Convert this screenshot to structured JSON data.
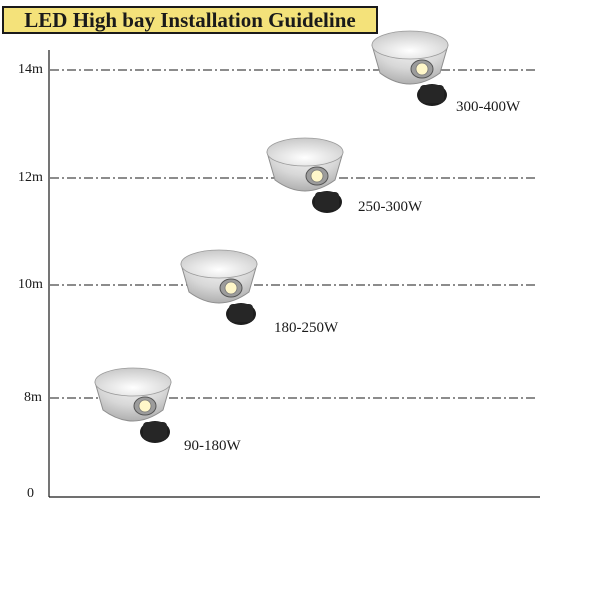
{
  "title": "LED High bay Installation Guideline",
  "axis": {
    "ticks": [
      {
        "label": "14m",
        "height_m": 14
      },
      {
        "label": "12m",
        "height_m": 12
      },
      {
        "label": "10m",
        "height_m": 10
      },
      {
        "label": "8m",
        "height_m": 8
      },
      {
        "label": "0",
        "height_m": 0
      }
    ]
  },
  "fixtures": [
    {
      "height_m": 14,
      "wattage": "300-400W"
    },
    {
      "height_m": 12,
      "wattage": "250-300W"
    },
    {
      "height_m": 10,
      "wattage": "180-250W"
    },
    {
      "height_m": 8,
      "wattage": "90-180W"
    }
  ],
  "colors": {
    "title_background": "#f4e27a",
    "line": "#1a1a1a",
    "reflector": "#d6d6d6",
    "housing": "#1e1e1e"
  }
}
